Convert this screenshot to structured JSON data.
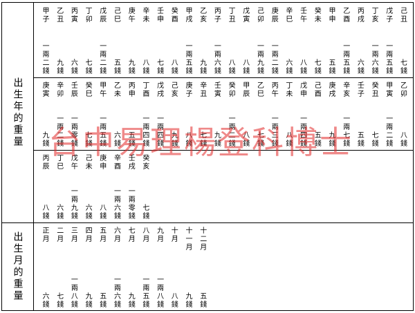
{
  "headers": {
    "year": "出生年的重量",
    "month": "出生月的重量"
  },
  "year_rows": [
    [
      {
        "gz": "甲子",
        "wt": "一兩二錢"
      },
      {
        "gz": "乙丑",
        "wt": "九錢"
      },
      {
        "gz": "丙寅",
        "wt": "六錢"
      },
      {
        "gz": "丁卯",
        "wt": "七錢"
      },
      {
        "gz": "戊辰",
        "wt": "一兩二錢"
      },
      {
        "gz": "己巳",
        "wt": "五錢"
      },
      {
        "gz": "庚午",
        "wt": "九錢"
      },
      {
        "gz": "辛未",
        "wt": "八錢"
      },
      {
        "gz": "壬申",
        "wt": "七錢"
      },
      {
        "gz": "癸酉",
        "wt": "八錢"
      },
      {
        "gz": "甲戌",
        "wt": "一兩五錢"
      },
      {
        "gz": "乙亥",
        "wt": "九錢"
      },
      {
        "gz": "丙子",
        "wt": "一兩六錢"
      },
      {
        "gz": "丁丑",
        "wt": "八錢"
      },
      {
        "gz": "戊寅",
        "wt": "八錢"
      },
      {
        "gz": "己卯",
        "wt": "一兩九錢"
      },
      {
        "gz": "庚辰",
        "wt": "一兩二錢"
      },
      {
        "gz": "辛巳",
        "wt": "六錢"
      },
      {
        "gz": "壬午",
        "wt": "八錢"
      },
      {
        "gz": "癸未",
        "wt": "七錢"
      },
      {
        "gz": "甲申",
        "wt": "五錢"
      },
      {
        "gz": "乙酉",
        "wt": "一兩五錢"
      },
      {
        "gz": "丙戌",
        "wt": "六錢"
      },
      {
        "gz": "丁亥",
        "wt": "一兩六錢"
      },
      {
        "gz": "戊子",
        "wt": "一兩五錢"
      },
      {
        "gz": "己丑",
        "wt": "七錢"
      }
    ],
    [
      {
        "gz": "庚寅",
        "wt": "九錢"
      },
      {
        "gz": "辛卯",
        "wt": "一兩二錢"
      },
      {
        "gz": "壬辰",
        "wt": "一兩零錢"
      },
      {
        "gz": "癸巳",
        "wt": "七錢"
      },
      {
        "gz": "甲午",
        "wt": "一兩五錢"
      },
      {
        "gz": "乙未",
        "wt": "六錢"
      },
      {
        "gz": "丙申",
        "wt": "五錢"
      },
      {
        "gz": "丁酉",
        "wt": "一兩四錢"
      },
      {
        "gz": "戊戌",
        "wt": "一兩四錢"
      },
      {
        "gz": "己亥",
        "wt": "九錢"
      },
      {
        "gz": "庚子",
        "wt": "八錢"
      },
      {
        "gz": "辛丑",
        "wt": "七錢"
      },
      {
        "gz": "壬寅",
        "wt": "九錢"
      },
      {
        "gz": "癸卯",
        "wt": "一兩二錢"
      },
      {
        "gz": "甲辰",
        "wt": "八錢"
      },
      {
        "gz": "乙巳",
        "wt": "七錢"
      },
      {
        "gz": "丙午",
        "wt": "一兩三錢"
      },
      {
        "gz": "丁未",
        "wt": "八錢"
      },
      {
        "gz": "戊申",
        "wt": "一兩四錢"
      },
      {
        "gz": "己酉",
        "wt": "五錢"
      },
      {
        "gz": "庚戌",
        "wt": "九錢"
      },
      {
        "gz": "辛亥",
        "wt": "一兩七錢"
      },
      {
        "gz": "壬子",
        "wt": "五錢"
      },
      {
        "gz": "癸丑",
        "wt": "七錢"
      },
      {
        "gz": "甲寅",
        "wt": "一兩二錢"
      },
      {
        "gz": "乙卯",
        "wt": "八錢"
      }
    ],
    [
      {
        "gz": "丙辰",
        "wt": "八錢"
      },
      {
        "gz": "丁巳",
        "wt": "六錢"
      },
      {
        "gz": "戊午",
        "wt": "一兩九錢"
      },
      {
        "gz": "己未",
        "wt": "六錢"
      },
      {
        "gz": "庚申",
        "wt": "八錢"
      },
      {
        "gz": "辛酉",
        "wt": "一兩六錢"
      },
      {
        "gz": "壬戌",
        "wt": "一兩零錢"
      },
      {
        "gz": "癸亥",
        "wt": "七錢"
      }
    ]
  ],
  "month_row": [
    {
      "gz": "正月",
      "wt": "六錢"
    },
    {
      "gz": "二月",
      "wt": "七錢"
    },
    {
      "gz": "三月",
      "wt": "一兩八錢"
    },
    {
      "gz": "四月",
      "wt": "九錢"
    },
    {
      "gz": "五月",
      "wt": "五錢"
    },
    {
      "gz": "六月",
      "wt": "一兩六錢"
    },
    {
      "gz": "七月",
      "wt": "九錢"
    },
    {
      "gz": "八月",
      "wt": "一兩五錢"
    },
    {
      "gz": "九月",
      "wt": "一兩八錢"
    },
    {
      "gz": "十月",
      "wt": "八錢"
    },
    {
      "gz": "十一月",
      "wt": "九錢"
    },
    {
      "gz": "十二月",
      "wt": "五錢"
    }
  ],
  "watermark": "台中易理楊登科博士"
}
